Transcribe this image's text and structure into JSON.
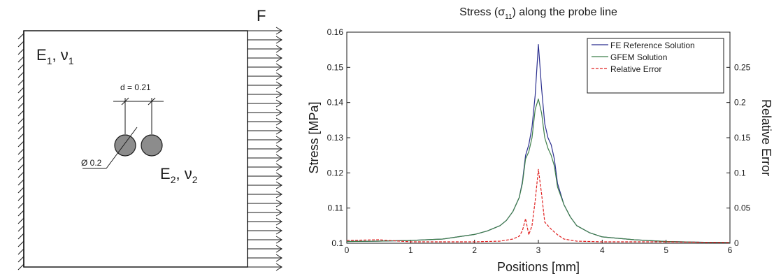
{
  "diagram": {
    "material_outer": [
      "E",
      "1",
      ", ν",
      "1"
    ],
    "material_inner": [
      "E",
      "2",
      ", ν",
      "2"
    ],
    "force_label": "F",
    "spacing_label": "d = 0.21",
    "diameter_label": "Ø 0.2"
  },
  "colors": {
    "fe": "#2b2f8f",
    "gfem": "#3f7f4a",
    "error": "#e02020",
    "diagram_fill": "#8c8c8c",
    "diagram_stroke": "#1a1a1a"
  },
  "chart_data": {
    "type": "line",
    "title": [
      "Stress (σ",
      "11",
      ") along the probe line"
    ],
    "xlabel": "Positions [mm]",
    "ylabel": "Stress [MPa]",
    "y2label": "Relative Error",
    "xlim": [
      0,
      6
    ],
    "ylim": [
      0.1,
      0.16
    ],
    "y2lim": [
      0,
      0.3
    ],
    "xticks": [
      "0",
      "1",
      "2",
      "3",
      "4",
      "5",
      "6"
    ],
    "yticks": [
      "0.1",
      "0.11",
      "0.12",
      "0.13",
      "0.14",
      "0.15",
      "0.16"
    ],
    "y2ticks": [
      "0",
      "0.05",
      "0.1",
      "0.15",
      "0.2",
      "0.25"
    ],
    "legend_position": "top-right",
    "grid": false,
    "series": [
      {
        "name": "FE Reference Solution",
        "axis": "left",
        "style": "solid",
        "x": [
          0,
          0.5,
          1.0,
          1.5,
          2.0,
          2.2,
          2.4,
          2.5,
          2.6,
          2.7,
          2.75,
          2.8,
          2.85,
          2.9,
          2.95,
          3.0,
          3.05,
          3.1,
          3.15,
          3.2,
          3.25,
          3.3,
          3.4,
          3.5,
          3.6,
          3.8,
          4.0,
          4.5,
          5.0,
          5.5,
          6.0
        ],
        "y": [
          0.1005,
          0.1006,
          0.1008,
          0.1012,
          0.1025,
          0.1035,
          0.105,
          0.1065,
          0.109,
          0.113,
          0.1175,
          0.125,
          0.128,
          0.133,
          0.142,
          0.1565,
          0.144,
          0.134,
          0.13,
          0.128,
          0.124,
          0.117,
          0.111,
          0.1075,
          0.105,
          0.103,
          0.1018,
          0.101,
          0.1005,
          0.1003,
          0.1002
        ]
      },
      {
        "name": "GFEM Solution",
        "axis": "left",
        "style": "solid",
        "x": [
          0,
          0.5,
          1.0,
          1.5,
          2.0,
          2.2,
          2.4,
          2.5,
          2.6,
          2.7,
          2.75,
          2.8,
          2.85,
          2.9,
          2.95,
          3.0,
          3.05,
          3.1,
          3.15,
          3.2,
          3.25,
          3.3,
          3.4,
          3.5,
          3.6,
          3.8,
          4.0,
          4.5,
          5.0,
          5.5,
          6.0
        ],
        "y": [
          0.1005,
          0.1006,
          0.1008,
          0.1012,
          0.1025,
          0.1035,
          0.105,
          0.1065,
          0.109,
          0.113,
          0.117,
          0.124,
          0.126,
          0.13,
          0.138,
          0.141,
          0.137,
          0.13,
          0.127,
          0.125,
          0.122,
          0.116,
          0.111,
          0.1075,
          0.105,
          0.103,
          0.1018,
          0.101,
          0.1005,
          0.1003,
          0.1002
        ]
      },
      {
        "name": "Relative Error",
        "axis": "right",
        "style": "dashed",
        "x": [
          0,
          0.5,
          1.0,
          1.5,
          2.0,
          2.4,
          2.6,
          2.7,
          2.75,
          2.8,
          2.85,
          2.9,
          2.95,
          3.0,
          3.05,
          3.1,
          3.15,
          3.2,
          3.3,
          3.4,
          3.6,
          4.0,
          4.5,
          5.0,
          6.0
        ],
        "y": [
          0.004,
          0.005,
          0.002,
          0.002,
          0.002,
          0.003,
          0.006,
          0.01,
          0.018,
          0.035,
          0.012,
          0.025,
          0.06,
          0.105,
          0.07,
          0.03,
          0.025,
          0.02,
          0.012,
          0.006,
          0.003,
          0.002,
          0.002,
          0.002,
          0.001
        ]
      }
    ]
  }
}
